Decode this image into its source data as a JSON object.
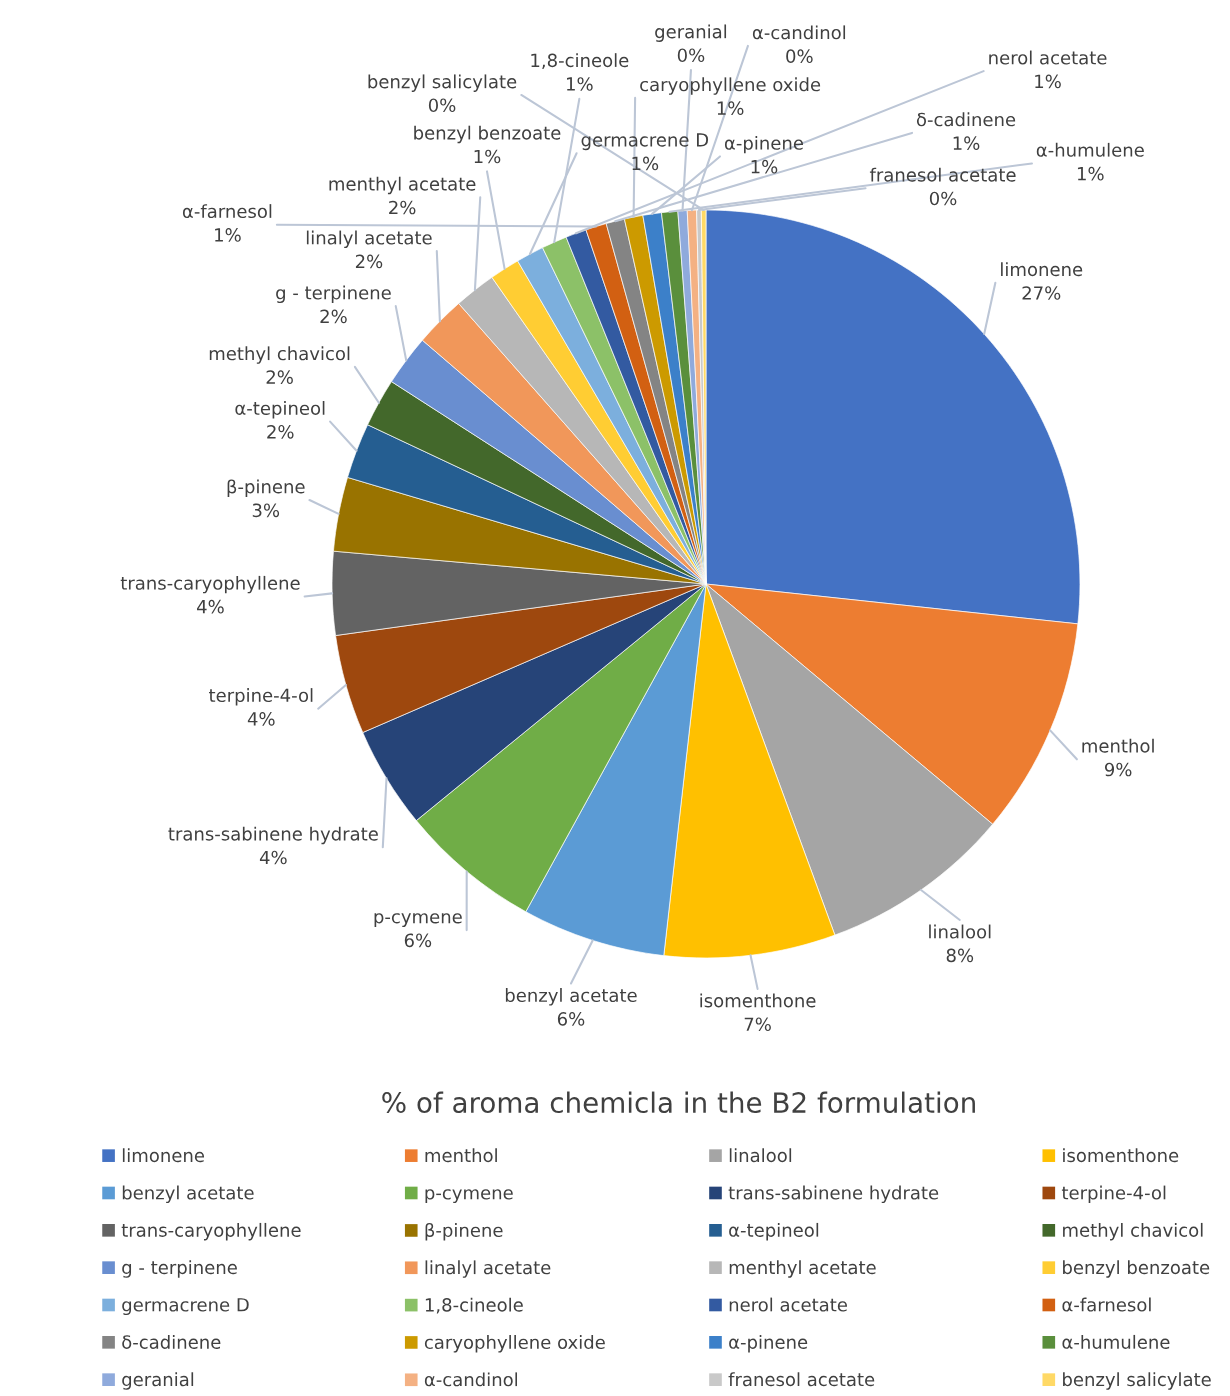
{
  "chart_data": {
    "type": "pie",
    "title": "% of aroma chemicla in the B2 formulation",
    "categories": [
      "limonene",
      "menthol",
      "linalool",
      "isomenthone",
      "benzyl acetate",
      "p-cymene",
      "trans-sabinene hydrate",
      "terpine-4-ol",
      "trans-caryophyllene",
      "β-pinene",
      "α-tepineol",
      "methyl chavicol",
      "g - terpinene",
      "linalyl acetate",
      "menthyl acetate",
      "benzyl benzoate",
      "germacrene D",
      "1,8-cineole",
      "nerol acetate",
      "α-farnesol",
      "δ-cadinene",
      "caryophyllene oxide",
      "α-pinene",
      "α-humulene",
      "geranial",
      "α-candinol",
      "franesol acetate",
      "benzyl salicylate"
    ],
    "values": [
      26.7,
      9.4,
      8.3,
      7.4,
      6.2,
      6.1,
      4.4,
      4.3,
      3.6,
      3.2,
      2.4,
      2.1,
      2.2,
      2.2,
      1.8,
      1.3,
      1.2,
      1.1,
      0.9,
      0.9,
      0.8,
      0.8,
      0.8,
      0.7,
      0.4,
      0.4,
      0.2,
      0.2
    ],
    "value_labels": [
      "27%",
      "9%",
      "8%",
      "7%",
      "6%",
      "6%",
      "4%",
      "4%",
      "4%",
      "3%",
      "2%",
      "2%",
      "2%",
      "2%",
      "2%",
      "1%",
      "1%",
      "1%",
      "1%",
      "1%",
      "1%",
      "1%",
      "1%",
      "1%",
      "0%",
      "0%",
      "0%",
      "0%"
    ],
    "colors": [
      "#4472c4",
      "#ed7d31",
      "#a5a5a5",
      "#ffc000",
      "#5b9bd5",
      "#70ad47",
      "#264478",
      "#9e480e",
      "#636363",
      "#997300",
      "#255e91",
      "#43682b",
      "#698ed0",
      "#f1975a",
      "#b7b7b7",
      "#ffcd33",
      "#7cafdd",
      "#8cc168",
      "#335aa1",
      "#d26012",
      "#848484",
      "#cc9a00",
      "#3c80c9",
      "#5a8f3c",
      "#8faadc",
      "#f4b183",
      "#c9c9c9",
      "#ffd966"
    ],
    "legend": "bottom"
  }
}
